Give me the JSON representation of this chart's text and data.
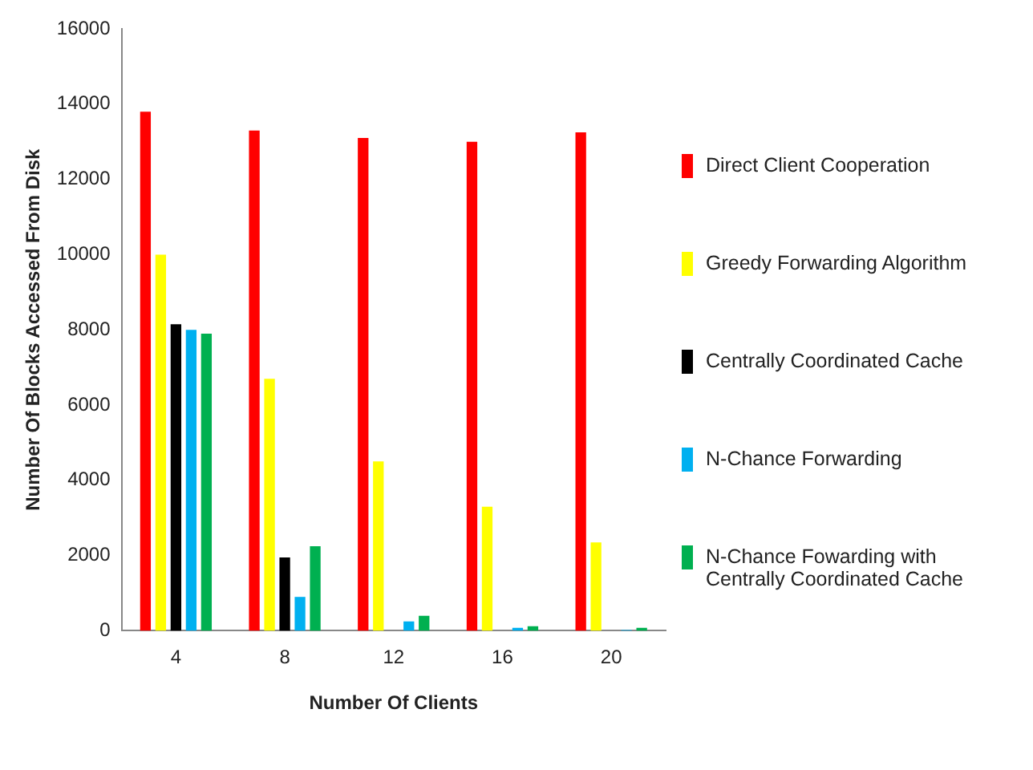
{
  "chart_data": {
    "type": "bar",
    "xlabel": "Number Of Clients",
    "ylabel": "Number Of Blocks Accessed From Disk",
    "categories": [
      "4",
      "8",
      "12",
      "16",
      "20"
    ],
    "series": [
      {
        "name": "Direct Client Cooperation",
        "color": "#ff0000",
        "values": [
          13800,
          13300,
          13100,
          13000,
          13250
        ]
      },
      {
        "name": "Greedy Forwarding Algorithm",
        "color": "#ffff00",
        "values": [
          10000,
          6700,
          4500,
          3300,
          2350
        ]
      },
      {
        "name": "Centrally Coordinated Cache",
        "color": "#000000",
        "values": [
          8150,
          1950,
          0,
          0,
          0
        ]
      },
      {
        "name": "N-Chance Forwarding",
        "color": "#00b0f0",
        "values": [
          8000,
          900,
          250,
          80,
          20
        ]
      },
      {
        "name": "N-Chance Fowarding with Centrally Coordinated Cache",
        "color": "#00b050",
        "values": [
          7900,
          2250,
          400,
          120,
          80
        ]
      }
    ],
    "ylim": [
      0,
      16000
    ],
    "yticks": [
      0,
      2000,
      4000,
      6000,
      8000,
      10000,
      12000,
      14000,
      16000
    ],
    "grid": false,
    "legend": "right"
  }
}
